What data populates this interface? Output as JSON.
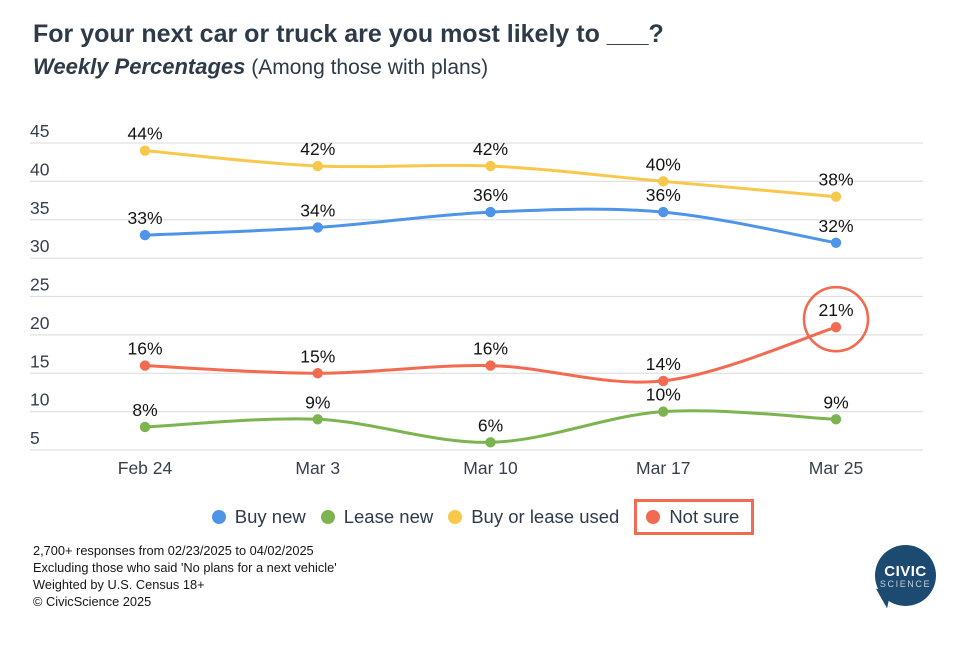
{
  "header": {
    "title": "For your next car or truck are you most likely to ___?",
    "subtitle_bold": "Weekly Percentages",
    "subtitle_rest": " (Among those with plans)"
  },
  "chart_data": {
    "type": "line",
    "title": "For your next car or truck are you most likely to ___?",
    "subtitle": "Weekly Percentages (Among those with plans)",
    "categories": [
      "Feb 24",
      "Mar 3",
      "Mar 10",
      "Mar 17",
      "Mar 25"
    ],
    "series": [
      {
        "name": "Buy new",
        "color": "#4e94e8",
        "values": [
          33,
          34,
          36,
          36,
          32
        ]
      },
      {
        "name": "Lease new",
        "color": "#7cb550",
        "values": [
          8,
          9,
          6,
          10,
          9
        ]
      },
      {
        "name": "Buy or lease used",
        "color": "#f8c84a",
        "values": [
          44,
          42,
          42,
          40,
          38
        ]
      },
      {
        "name": "Not sure",
        "color": "#f26b50",
        "values": [
          16,
          15,
          16,
          14,
          21
        ],
        "highlighted": true
      }
    ],
    "data_label_suffix": "%",
    "y_ticks": [
      45,
      40,
      35,
      30,
      25,
      20,
      15,
      10,
      5
    ],
    "ylim": [
      5,
      45
    ],
    "grid": true,
    "legend_position": "bottom",
    "annotation": {
      "type": "circle",
      "series": "Not sure",
      "x_index": 4,
      "label": "21%"
    }
  },
  "colors": {
    "grid": "#e0e0e0",
    "axis_text": "#363f4b",
    "data_label": "#141414",
    "highlight_box": "#f26b50"
  },
  "footer": {
    "lines": [
      "2,700+ responses from 02/23/2025 to 04/02/2025",
      "Excluding those who said 'No plans for a next vehicle'",
      "Weighted by U.S. Census 18+",
      "© CivicScience 2025"
    ]
  },
  "logo": {
    "line1": "CIVIC",
    "line2": "SCIENCE"
  }
}
